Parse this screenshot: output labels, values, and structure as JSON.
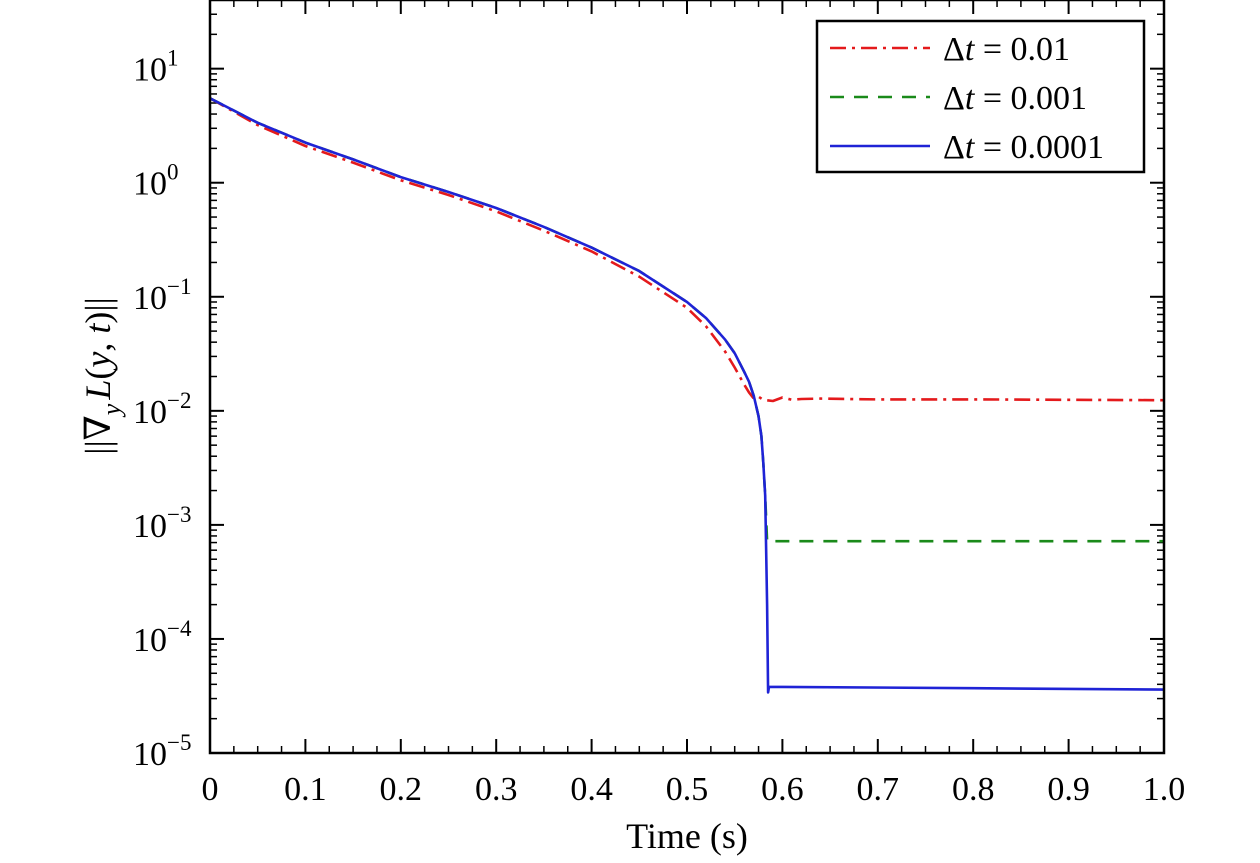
{
  "chart_data": {
    "type": "line",
    "title": "",
    "xlabel": "Time (s)",
    "ylabel": "||∇_y L(y, t)||",
    "ylabel_parts": {
      "open": "||",
      "nabla": "∇",
      "sub": "y",
      "L": "L",
      "args_open": "(",
      "y": "y",
      "comma": ", ",
      "t": "t",
      "close": ")||"
    },
    "xlim": [
      0,
      1.0
    ],
    "ylim": [
      1e-05,
      40
    ],
    "yscale": "log",
    "grid": false,
    "legend_position": "top-right",
    "x_ticks": [
      "0",
      "0.1",
      "0.2",
      "0.3",
      "0.4",
      "0.5",
      "0.6",
      "0.7",
      "0.8",
      "0.9",
      "1.0"
    ],
    "x_tick_values": [
      0,
      0.1,
      0.2,
      0.3,
      0.4,
      0.5,
      0.6,
      0.7,
      0.8,
      0.9,
      1.0
    ],
    "y_ticks": [
      {
        "base": "10",
        "exp": "1",
        "value": 10
      },
      {
        "base": "10",
        "exp": "0",
        "value": 1
      },
      {
        "base": "10",
        "exp": "−1",
        "value": 0.1
      },
      {
        "base": "10",
        "exp": "−2",
        "value": 0.01
      },
      {
        "base": "10",
        "exp": "−3",
        "value": 0.001
      },
      {
        "base": "10",
        "exp": "−4",
        "value": 0.0001
      },
      {
        "base": "10",
        "exp": "−5",
        "value": 1e-05
      }
    ],
    "series": [
      {
        "name": "Δt = 0.01",
        "legend": {
          "prefix": "Δ",
          "var": "t",
          "suffix": " = 0.01"
        },
        "color": "#e41a1c",
        "dash": "16,6,3,6",
        "x": [
          0,
          0.05,
          0.1,
          0.15,
          0.2,
          0.25,
          0.3,
          0.35,
          0.4,
          0.45,
          0.5,
          0.52,
          0.54,
          0.55,
          0.56,
          0.565,
          0.57,
          0.575,
          0.58,
          0.59,
          0.6,
          0.61,
          0.62,
          0.64,
          0.7,
          0.8,
          0.9,
          1.0
        ],
        "y": [
          5.5,
          3.2,
          2.1,
          1.5,
          1.05,
          0.78,
          0.56,
          0.38,
          0.25,
          0.15,
          0.08,
          0.055,
          0.033,
          0.024,
          0.017,
          0.0145,
          0.0128,
          0.0133,
          0.0125,
          0.0122,
          0.0131,
          0.0125,
          0.0127,
          0.0128,
          0.0126,
          0.0126,
          0.0125,
          0.0124
        ]
      },
      {
        "name": "Δt = 0.001",
        "legend": {
          "prefix": "Δ",
          "var": "t",
          "suffix": " = 0.001"
        },
        "color": "#1a8a1a",
        "dash": "14,10",
        "x": [
          0,
          0.05,
          0.1,
          0.15,
          0.2,
          0.25,
          0.3,
          0.35,
          0.4,
          0.45,
          0.5,
          0.52,
          0.54,
          0.55,
          0.56,
          0.565,
          0.57,
          0.575,
          0.578,
          0.58,
          0.582,
          0.584,
          0.6,
          0.8,
          1.0
        ],
        "y": [
          5.5,
          3.35,
          2.25,
          1.6,
          1.12,
          0.83,
          0.6,
          0.41,
          0.27,
          0.168,
          0.09,
          0.065,
          0.042,
          0.032,
          0.022,
          0.018,
          0.0135,
          0.009,
          0.006,
          0.0035,
          0.0018,
          0.00072,
          0.00072,
          0.00072,
          0.00072
        ]
      },
      {
        "name": "Δt = 0.0001",
        "legend": {
          "prefix": "Δ",
          "var": "t",
          "suffix": " = 0.0001"
        },
        "color": "#1f23d6",
        "dash": "",
        "x": [
          0,
          0.05,
          0.1,
          0.15,
          0.2,
          0.25,
          0.3,
          0.35,
          0.4,
          0.45,
          0.5,
          0.52,
          0.54,
          0.55,
          0.56,
          0.565,
          0.57,
          0.575,
          0.578,
          0.58,
          0.582,
          0.584,
          0.585,
          0.586,
          0.6,
          0.8,
          1.0
        ],
        "y": [
          5.5,
          3.35,
          2.25,
          1.6,
          1.12,
          0.83,
          0.6,
          0.41,
          0.27,
          0.168,
          0.09,
          0.065,
          0.042,
          0.032,
          0.022,
          0.018,
          0.0135,
          0.009,
          0.006,
          0.0035,
          0.0018,
          0.0002,
          3.4e-05,
          3.8e-05,
          3.8e-05,
          3.7e-05,
          3.6e-05
        ]
      }
    ]
  }
}
